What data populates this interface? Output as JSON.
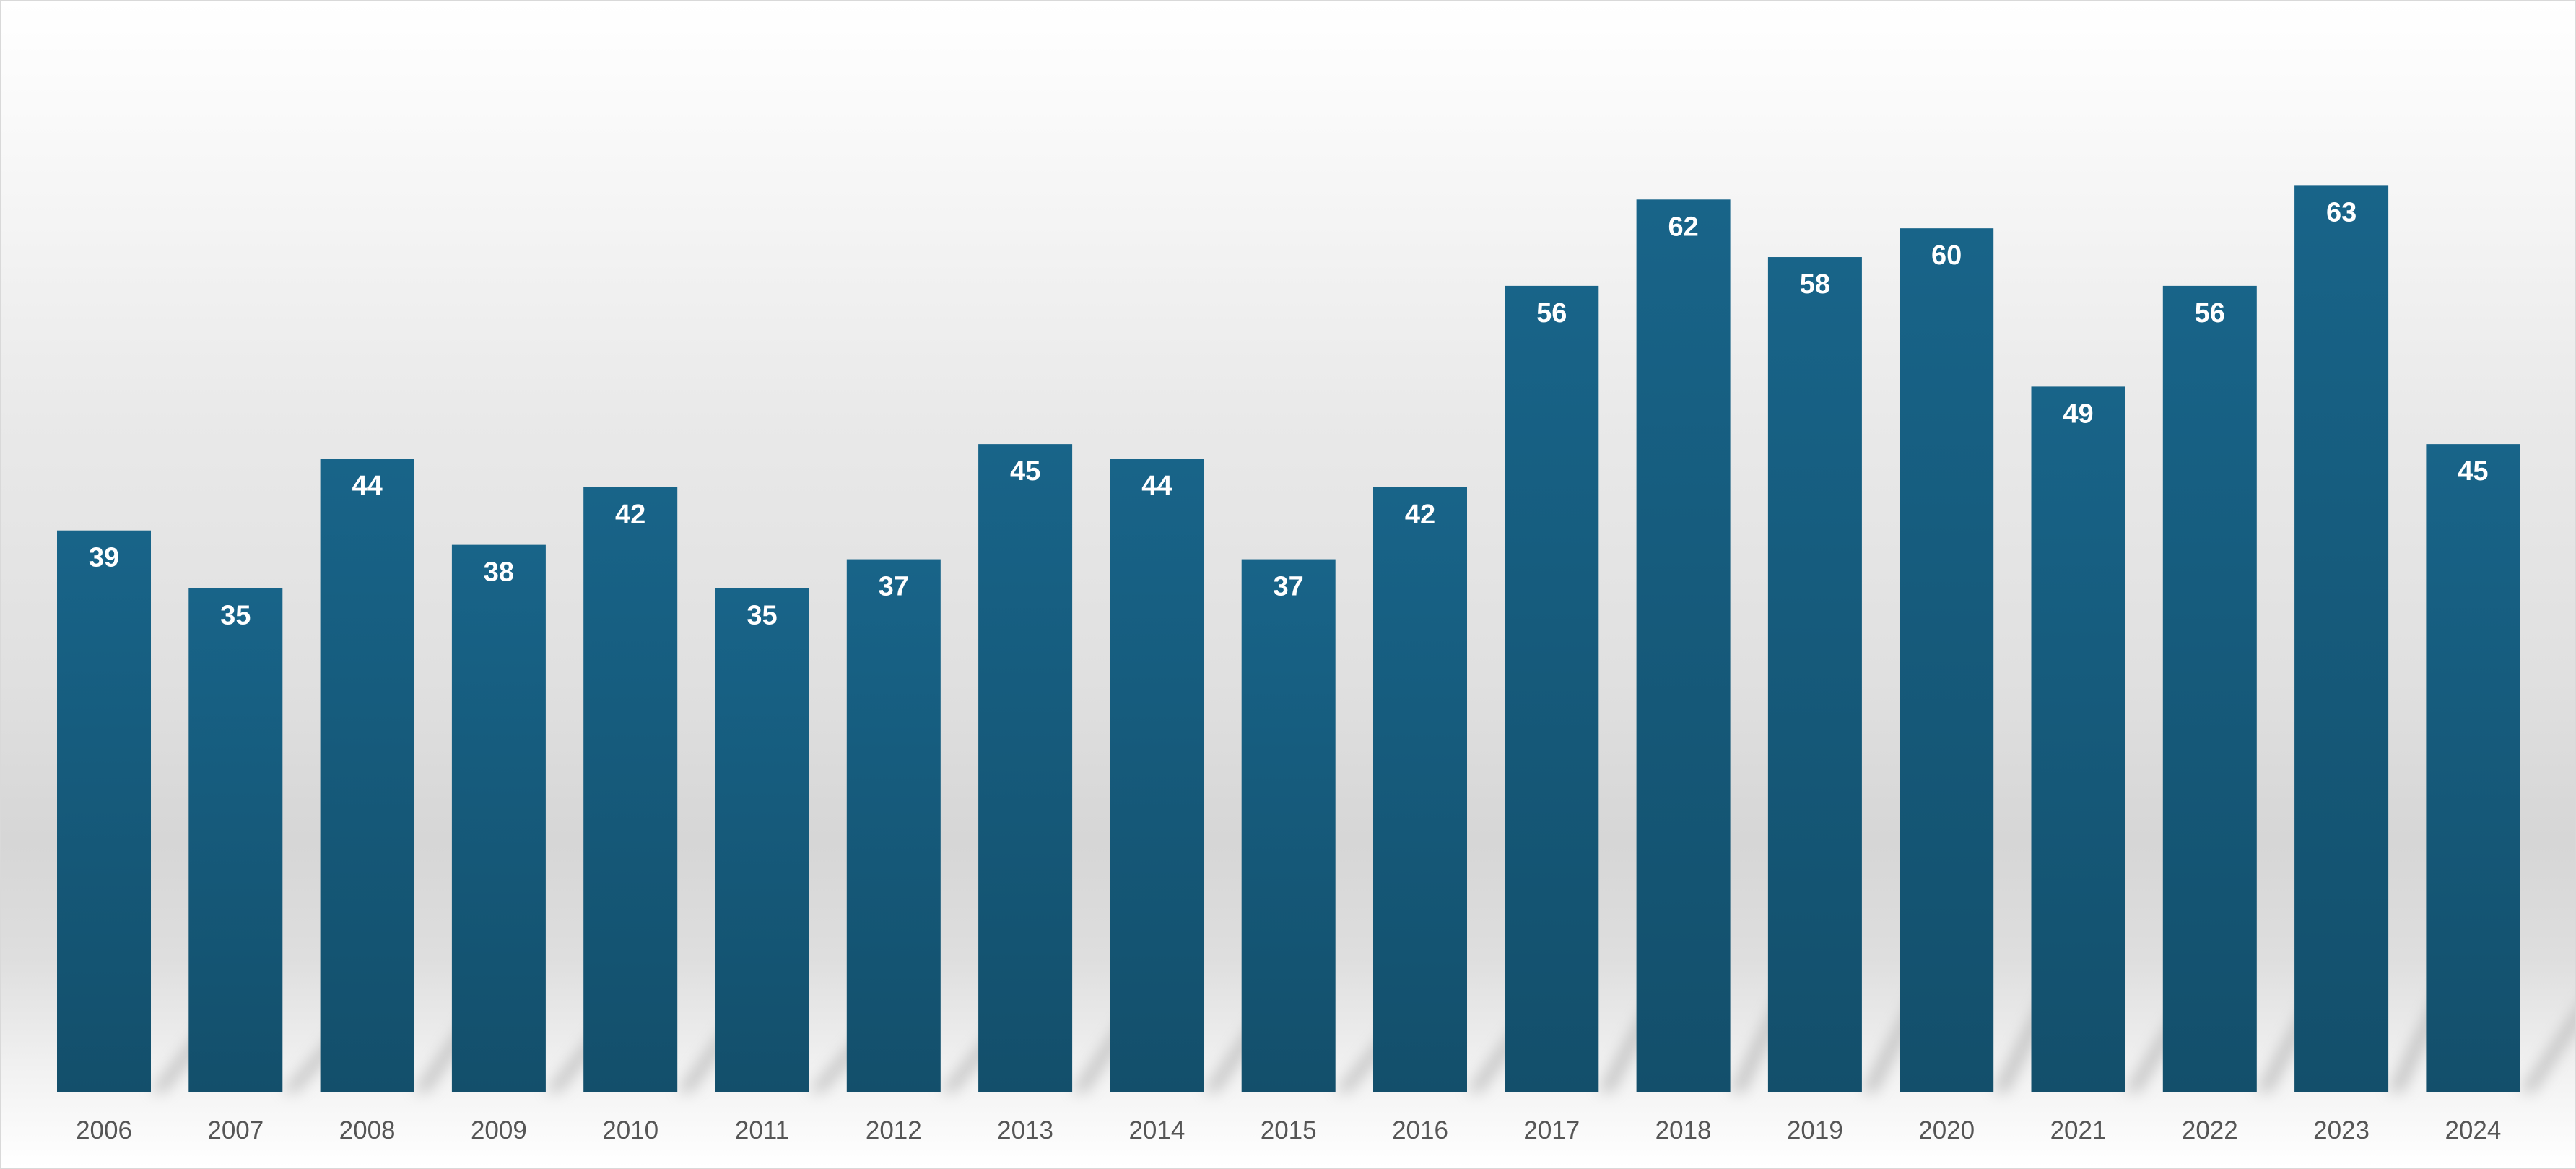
{
  "chart_data": {
    "type": "bar",
    "title": "",
    "xlabel": "",
    "ylabel": "",
    "categories": [
      "2006",
      "2007",
      "2008",
      "2009",
      "2010",
      "2011",
      "2012",
      "2013",
      "2014",
      "2015",
      "2016",
      "2017",
      "2018",
      "2019",
      "2020",
      "2021",
      "2022",
      "2023",
      "2024"
    ],
    "values": [
      39,
      35,
      44,
      38,
      42,
      35,
      37,
      45,
      44,
      37,
      42,
      56,
      62,
      58,
      60,
      49,
      56,
      63,
      45
    ],
    "ylim": [
      0,
      72
    ],
    "grid": false,
    "legend": "none",
    "data_labels": "inside-top",
    "colors": {
      "bar_top": "#186489",
      "bar_bottom": "#134f6b",
      "data_label": "#ffffff",
      "tick_label": "#555555"
    }
  }
}
